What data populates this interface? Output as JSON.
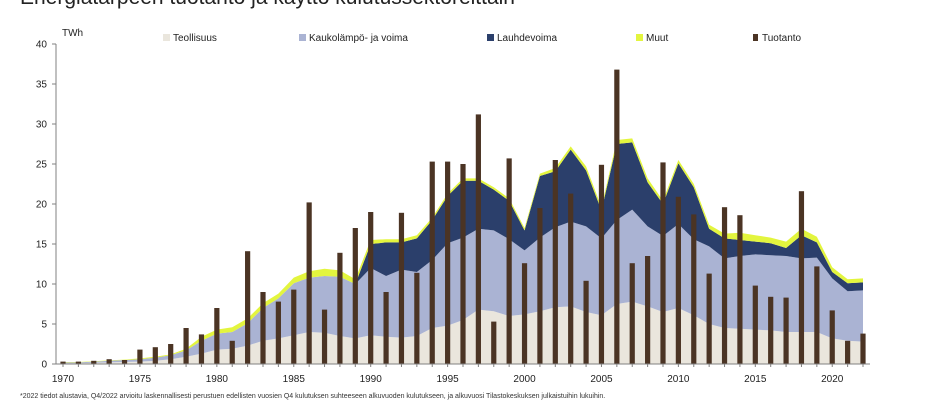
{
  "chart_data": {
    "type": "area",
    "title": "Energiatarpeen tuotanto ja käyttö kulutussektoreittain",
    "ylabel": "TWh",
    "xlabel": "",
    "ylim": [
      0,
      40
    ],
    "yticks": [
      0,
      5,
      10,
      15,
      20,
      25,
      30,
      35,
      40
    ],
    "xticks": [
      1970,
      1975,
      1980,
      1985,
      1990,
      1995,
      2000,
      2005,
      2010,
      2015,
      2020
    ],
    "x": [
      1970,
      1971,
      1972,
      1973,
      1974,
      1975,
      1976,
      1977,
      1978,
      1979,
      1980,
      1981,
      1982,
      1983,
      1984,
      1985,
      1986,
      1987,
      1988,
      1989,
      1990,
      1991,
      1992,
      1993,
      1994,
      1995,
      1996,
      1997,
      1998,
      1999,
      2000,
      2001,
      2002,
      2003,
      2004,
      2005,
      2006,
      2007,
      2008,
      2009,
      2010,
      2011,
      2012,
      2013,
      2014,
      2015,
      2016,
      2017,
      2018,
      2019,
      2020,
      2021,
      2022
    ],
    "legend_position": "top",
    "grid": false,
    "series": [
      {
        "name": "Teollisuus",
        "type": "area",
        "color": "#eae6dd",
        "values": [
          0.1,
          0.1,
          0.15,
          0.2,
          0.25,
          0.3,
          0.4,
          0.6,
          0.9,
          1.3,
          1.8,
          1.9,
          2.3,
          2.9,
          3.2,
          3.6,
          4.0,
          3.9,
          3.5,
          3.2,
          3.6,
          3.4,
          3.3,
          3.5,
          4.5,
          4.8,
          5.5,
          6.8,
          6.6,
          6.0,
          6.2,
          6.6,
          7.1,
          7.2,
          6.5,
          6.1,
          7.5,
          7.8,
          7.2,
          6.5,
          7.0,
          6.1,
          5.0,
          4.5,
          4.4,
          4.3,
          4.2,
          4.0,
          4.0,
          4.0,
          3.2,
          2.9,
          2.8
        ]
      },
      {
        "name": "Kaukolämpö- ja voima",
        "type": "area",
        "color": "#aab3d3",
        "values": [
          0.1,
          0.1,
          0.15,
          0.2,
          0.25,
          0.3,
          0.4,
          0.5,
          0.8,
          1.6,
          2.0,
          2.1,
          2.8,
          4.1,
          5.0,
          6.5,
          6.8,
          7.1,
          7.4,
          6.8,
          8.4,
          7.6,
          8.5,
          8.0,
          8.5,
          10.3,
          10.3,
          10.1,
          10.1,
          9.6,
          8.0,
          9.2,
          10.0,
          10.6,
          10.7,
          9.6,
          10.5,
          11.5,
          10.0,
          9.5,
          10.5,
          9.5,
          9.7,
          8.7,
          9.1,
          9.4,
          9.4,
          9.5,
          9.2,
          9.3,
          7.5,
          6.2,
          6.4
        ]
      },
      {
        "name": "Lauhdevoima",
        "type": "area",
        "color": "#2b3f6b",
        "values": [
          0,
          0,
          0,
          0,
          0,
          0,
          0,
          0,
          0,
          0,
          0,
          0,
          0,
          0,
          0,
          0,
          0,
          0,
          0,
          0,
          3.0,
          4.2,
          3.4,
          4.2,
          5.0,
          5.9,
          7.1,
          6.0,
          5.1,
          4.8,
          2.5,
          7.7,
          7.0,
          9.0,
          7.0,
          3.5,
          9.5,
          8.4,
          5.5,
          4.0,
          7.6,
          6.5,
          2.2,
          2.5,
          2.0,
          1.6,
          1.5,
          1.0,
          2.9,
          1.9,
          0.8,
          1.0,
          1.0
        ]
      },
      {
        "name": "Muut",
        "type": "area",
        "color": "#e3f53e",
        "values": [
          0.05,
          0.05,
          0.05,
          0.05,
          0.05,
          0.1,
          0.1,
          0.1,
          0.2,
          0.5,
          0.5,
          0.6,
          0.6,
          0.6,
          0.6,
          0.7,
          0.8,
          0.9,
          0.8,
          0.6,
          0.5,
          0.4,
          0.4,
          0.4,
          0.3,
          0.3,
          0.3,
          0.3,
          0.3,
          0.3,
          0.3,
          0.3,
          0.4,
          0.4,
          0.5,
          0.4,
          0.5,
          0.5,
          0.5,
          0.4,
          0.4,
          0.4,
          0.5,
          0.6,
          0.9,
          0.8,
          0.7,
          0.8,
          0.8,
          0.7,
          0.6,
          0.5,
          0.5
        ]
      },
      {
        "name": "Tuotanto",
        "type": "bar",
        "color": "#4b3424",
        "values": [
          0.3,
          0.3,
          0.4,
          0.6,
          0.5,
          1.8,
          2.1,
          2.5,
          4.5,
          3.7,
          7.0,
          2.9,
          14.1,
          9.0,
          7.8,
          9.3,
          20.2,
          6.8,
          13.9,
          17.0,
          19.0,
          9.0,
          18.9,
          11.4,
          25.3,
          25.3,
          25.0,
          31.2,
          5.3,
          25.7,
          12.6,
          19.5,
          25.5,
          21.3,
          10.4,
          24.9,
          36.8,
          12.6,
          13.5,
          25.2,
          20.9,
          18.7,
          11.3,
          19.6,
          18.6,
          9.8,
          8.4,
          8.3,
          21.6,
          12.2,
          6.7,
          2.9,
          3.8
        ]
      }
    ]
  },
  "footnote": "*2022 tiedot alustavia, Q4/2022 arvioitu laskennallisesti perustuen edellisten vuosien Q4 kulutuksen suhteeseen alkuvuoden kulutukseen, ja alkuvuosi Tilastokeskuksen julkaistuihin lukuihin."
}
